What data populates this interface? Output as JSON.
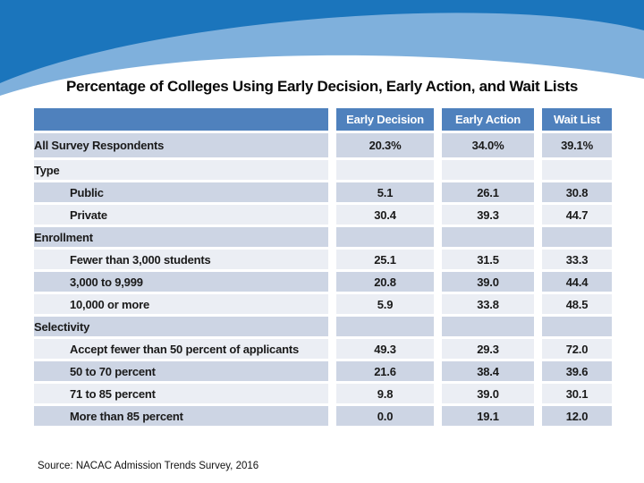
{
  "slide": {
    "title": "Percentage of Colleges Using Early Decision, Early Action, and Wait Lists",
    "source": "Source: NACAC Admission Trends Survey, 2016"
  },
  "colors": {
    "banner_dark_blue": "#1b75bc",
    "banner_light_blue": "#7fb0dc",
    "table_header_bg": "#4f81bd",
    "table_header_text": "#ffffff",
    "row_band_dark": "#cdd5e4",
    "row_band_light": "#ebeef4",
    "body_text": "#1a1a1a"
  },
  "table": {
    "columns": [
      "",
      "Early Decision",
      "Early Action",
      "Wait List"
    ],
    "rows": [
      {
        "kind": "total",
        "label": "All Survey Respondents",
        "values": [
          "20.3%",
          "34.0%",
          "39.1%"
        ]
      },
      {
        "kind": "category",
        "label": "Type",
        "values": [
          "",
          "",
          ""
        ]
      },
      {
        "kind": "sub",
        "label": "Public",
        "values": [
          "5.1",
          "26.1",
          "30.8"
        ]
      },
      {
        "kind": "sub",
        "label": "Private",
        "values": [
          "30.4",
          "39.3",
          "44.7"
        ]
      },
      {
        "kind": "category",
        "label": "Enrollment",
        "values": [
          "",
          "",
          ""
        ]
      },
      {
        "kind": "sub",
        "label": "Fewer than 3,000 students",
        "values": [
          "25.1",
          "31.5",
          "33.3"
        ]
      },
      {
        "kind": "sub",
        "label": "3,000 to 9,999",
        "values": [
          "20.8",
          "39.0",
          "44.4"
        ]
      },
      {
        "kind": "sub",
        "label": "10,000 or more",
        "values": [
          "5.9",
          "33.8",
          "48.5"
        ]
      },
      {
        "kind": "category",
        "label": "Selectivity",
        "values": [
          "",
          "",
          ""
        ]
      },
      {
        "kind": "sub",
        "label": "Accept fewer than 50 percent of applicants",
        "values": [
          "49.3",
          "29.3",
          "72.0"
        ]
      },
      {
        "kind": "sub",
        "label": "50 to 70 percent",
        "values": [
          "21.6",
          "38.4",
          "39.6"
        ]
      },
      {
        "kind": "sub",
        "label": "71 to 85 percent",
        "values": [
          "9.8",
          "39.0",
          "30.1"
        ]
      },
      {
        "kind": "sub",
        "label": "More than 85 percent",
        "values": [
          "0.0",
          "19.1",
          "12.0"
        ]
      }
    ]
  }
}
